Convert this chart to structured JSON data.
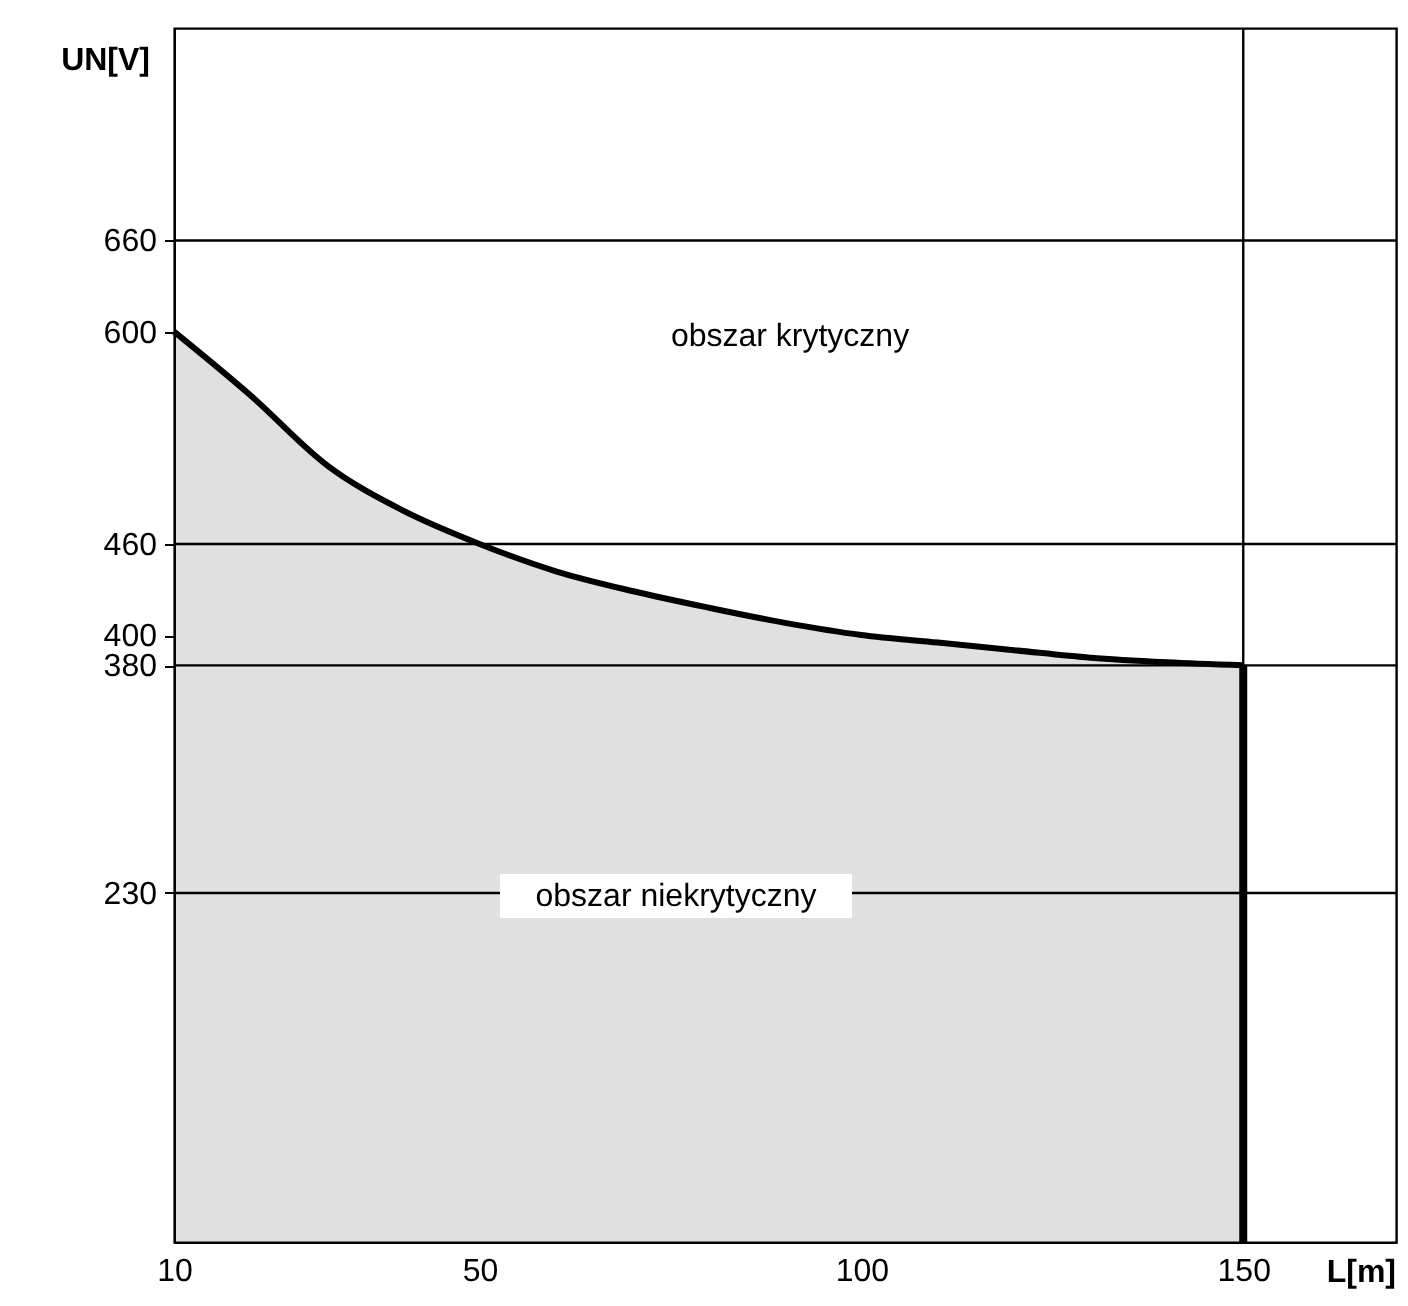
{
  "chart_data": {
    "type": "area",
    "xlabel": "L[m]",
    "ylabel": "UN[V]",
    "xlim": [
      10,
      170
    ],
    "xticks": [
      10,
      50,
      100,
      150
    ],
    "ylim": [
      0,
      800
    ],
    "yticks": [
      230,
      380,
      400,
      460,
      600,
      660
    ],
    "series": [
      {
        "color": "#000000",
        "x": [
          10,
          20,
          30,
          40,
          50,
          60,
          70,
          80,
          90,
          100,
          110,
          120,
          130,
          140,
          150
        ],
        "values": [
          600,
          558,
          512,
          482,
          460,
          442,
          429,
          418,
          408,
          400,
          395,
          390,
          385,
          382,
          380
        ]
      },
      {
        "type": "line",
        "color": "#000000",
        "x": [
          150,
          150
        ],
        "values": [
          380,
          0
        ]
      }
    ],
    "ref_lines": [
      {
        "axis": "y",
        "value": 230,
        "color": "#000000"
      },
      {
        "axis": "y",
        "value": 380,
        "color": "#000000"
      },
      {
        "axis": "y",
        "value": 460,
        "color": "#000000"
      },
      {
        "axis": "y",
        "value": 660,
        "color": "#000000"
      },
      {
        "axis": "x",
        "value": 150,
        "color": "#000000"
      }
    ],
    "annotations": [
      "obszar krytyczny",
      "obszar niekrytyczny"
    ]
  }
}
